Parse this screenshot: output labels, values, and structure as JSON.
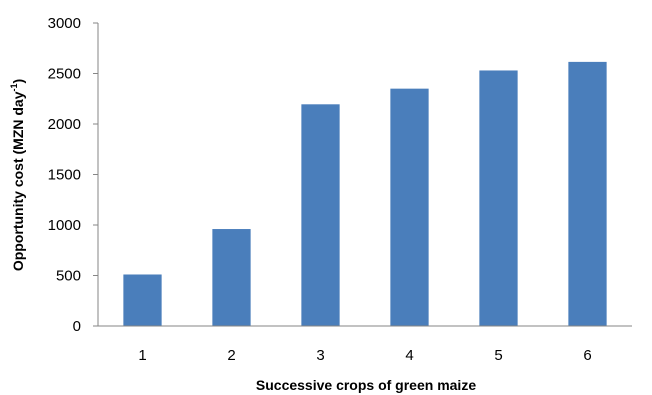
{
  "chart_data": {
    "type": "bar",
    "title": "",
    "xlabel": "Successive crops of green maize",
    "ylabel": {
      "main": "Opportunity cost (MZN day",
      "superscript": "-1",
      "suffix": ")"
    },
    "categories": [
      "1",
      "2",
      "3",
      "4",
      "5",
      "6"
    ],
    "values": [
      510,
      960,
      2195,
      2350,
      2530,
      2615
    ],
    "ylim": [
      0,
      3000
    ],
    "yticks": [
      0,
      500,
      1000,
      1500,
      2000,
      2500,
      3000
    ],
    "grid": false,
    "legend": "none",
    "colors": {
      "bar": "#4a7ebb",
      "axis": "#868686",
      "text": "#000000"
    }
  }
}
